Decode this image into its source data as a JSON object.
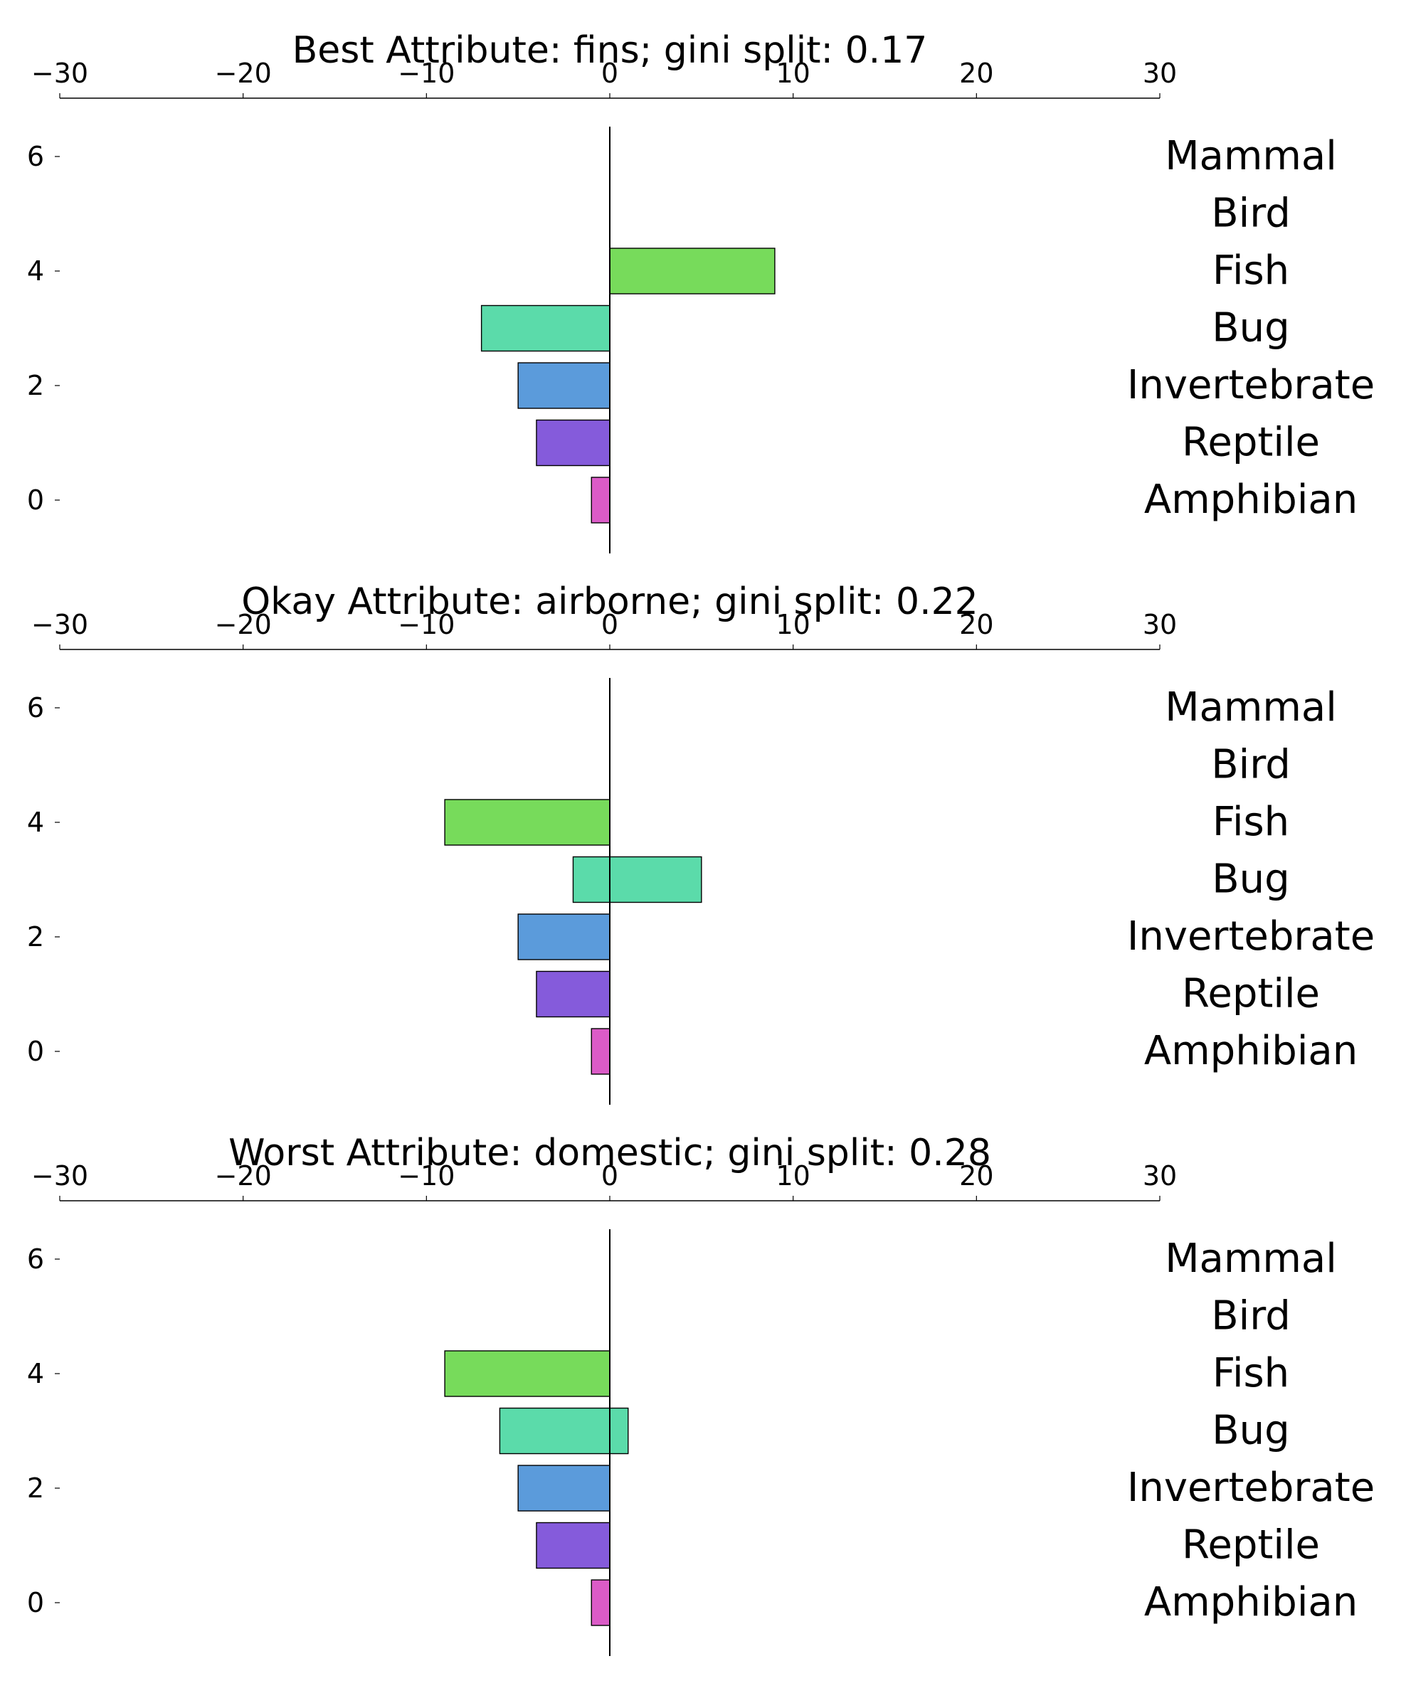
{
  "chart_data": [
    {
      "type": "bar",
      "orientation": "horizontal",
      "title": "Best Attribute: fins; gini split: 0.17",
      "xlim": [
        -30,
        30
      ],
      "x_ticks": [
        "−30",
        "−20",
        "−10",
        "0",
        "10",
        "20",
        "30"
      ],
      "y_ticks": [
        "0",
        "2",
        "4",
        "6"
      ],
      "categories": [
        "Amphibian",
        "Reptile",
        "Invertebrate",
        "Bug",
        "Fish",
        "Bird",
        "Mammal"
      ],
      "colors": [
        "#db5bc7",
        "#855bdb",
        "#5b9bdb",
        "#5bdbaa",
        "#77db5b",
        "#dbc35b",
        "#db5b5b"
      ],
      "series": [
        {
          "values": [
            -1,
            -4,
            -5,
            -7,
            0,
            0,
            0
          ]
        },
        {
          "values": [
            0,
            0,
            0,
            0,
            9,
            0,
            0
          ]
        }
      ]
    },
    {
      "type": "bar",
      "orientation": "horizontal",
      "title": "Okay Attribute: airborne; gini split: 0.22",
      "xlim": [
        -30,
        30
      ],
      "x_ticks": [
        "−30",
        "−20",
        "−10",
        "0",
        "10",
        "20",
        "30"
      ],
      "y_ticks": [
        "0",
        "2",
        "4",
        "6"
      ],
      "categories": [
        "Amphibian",
        "Reptile",
        "Invertebrate",
        "Bug",
        "Fish",
        "Bird",
        "Mammal"
      ],
      "colors": [
        "#db5bc7",
        "#855bdb",
        "#5b9bdb",
        "#5bdbaa",
        "#77db5b",
        "#dbc35b",
        "#db5b5b"
      ],
      "series": [
        {
          "values": [
            -1,
            -4,
            -5,
            -2,
            -9,
            0,
            0
          ]
        },
        {
          "values": [
            0,
            0,
            0,
            5,
            0,
            0,
            0
          ]
        }
      ]
    },
    {
      "type": "bar",
      "orientation": "horizontal",
      "title": "Worst Attribute: domestic; gini split: 0.28",
      "xlim": [
        -30,
        30
      ],
      "x_ticks": [
        "−30",
        "−20",
        "−10",
        "0",
        "10",
        "20",
        "30"
      ],
      "y_ticks": [
        "0",
        "2",
        "4",
        "6"
      ],
      "categories": [
        "Amphibian",
        "Reptile",
        "Invertebrate",
        "Bug",
        "Fish",
        "Bird",
        "Mammal"
      ],
      "colors": [
        "#db5bc7",
        "#855bdb",
        "#5b9bdb",
        "#5bdbaa",
        "#77db5b",
        "#dbc35b",
        "#db5b5b"
      ],
      "series": [
        {
          "values": [
            -1,
            -4,
            -5,
            -6,
            -9,
            0,
            0
          ]
        },
        {
          "values": [
            0,
            0,
            0,
            1,
            0,
            0,
            0
          ]
        }
      ]
    }
  ]
}
